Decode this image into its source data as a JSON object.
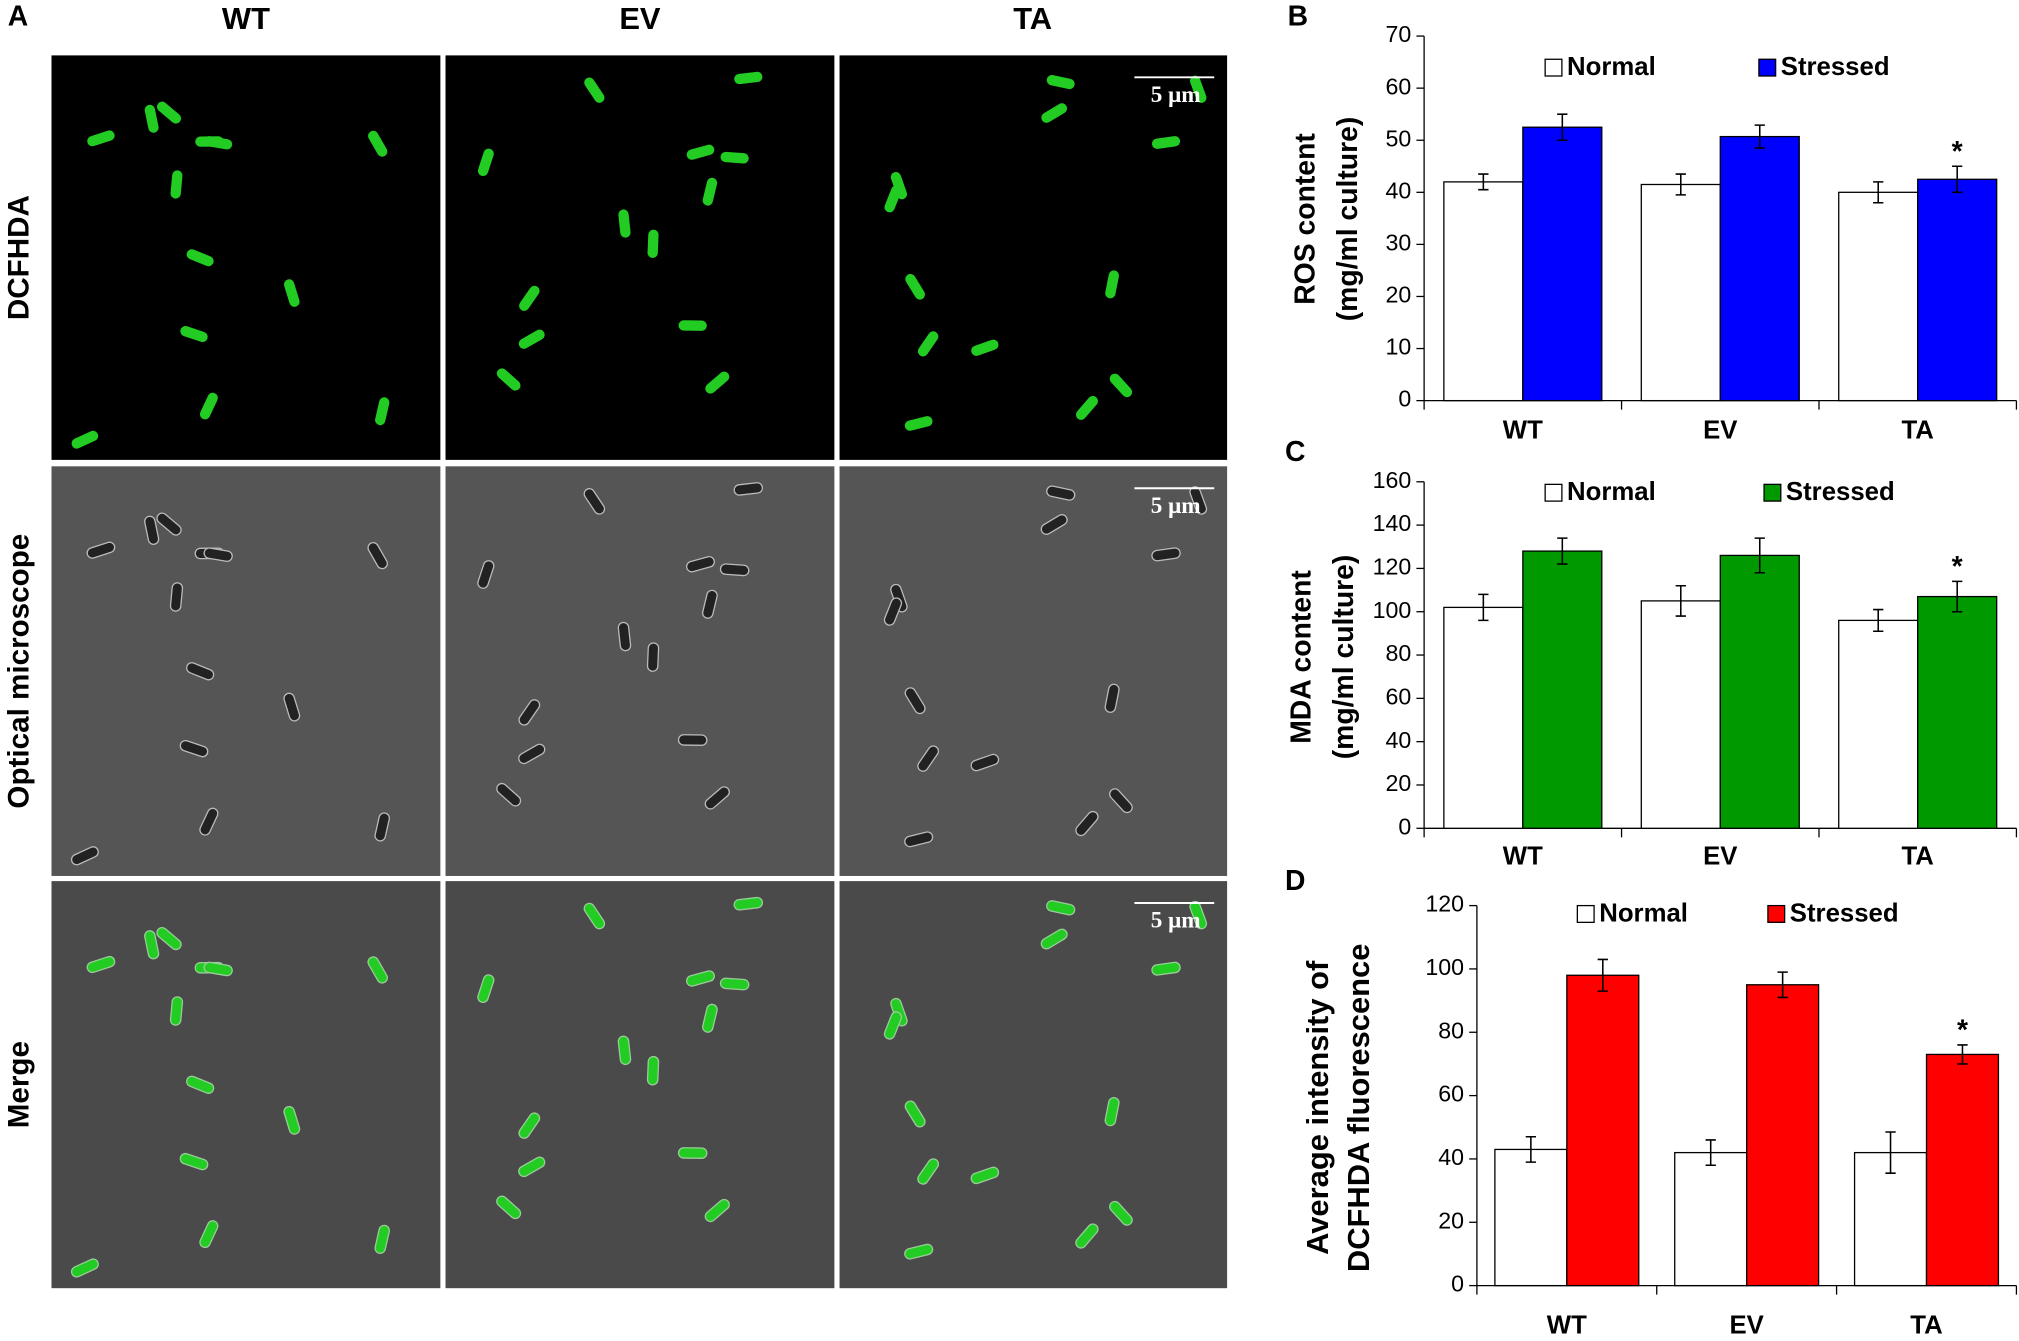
{
  "micrographs": {
    "panel_label": "A",
    "columns": [
      "WT",
      "EV",
      "TA"
    ],
    "rows": [
      "DCFHDA",
      "Optical microscope",
      "Merge"
    ],
    "scale_bar": "5 μm"
  },
  "chart_data": [
    {
      "type": "bar",
      "panel_label": "B",
      "ylabel": [
        "ROS content",
        "(mg/ml culture)"
      ],
      "categories": [
        "WT",
        "EV",
        "TA"
      ],
      "series": [
        {
          "name": "Normal",
          "color": "#ffffff",
          "values": [
            42,
            41.5,
            40
          ],
          "errors": [
            1.5,
            2,
            2
          ],
          "annotations": [
            null,
            null,
            null
          ]
        },
        {
          "name": "Stressed",
          "color": "#0000ff",
          "values": [
            52.5,
            50.7,
            42.5
          ],
          "errors": [
            2.5,
            2.2,
            2.5
          ],
          "annotations": [
            null,
            null,
            "*"
          ]
        }
      ],
      "ylim": [
        0,
        70
      ],
      "yticks": [
        0,
        10,
        20,
        30,
        40,
        50,
        60,
        70
      ],
      "grid": false
    },
    {
      "type": "bar",
      "panel_label": "C",
      "ylabel": [
        "MDA content",
        "(mg/ml culture)"
      ],
      "categories": [
        "WT",
        "EV",
        "TA"
      ],
      "series": [
        {
          "name": "Normal",
          "color": "#ffffff",
          "values": [
            102,
            105,
            96
          ],
          "errors": [
            6,
            7,
            5
          ],
          "annotations": [
            null,
            null,
            null
          ]
        },
        {
          "name": "Stressed",
          "color": "#009900",
          "values": [
            128,
            126,
            107
          ],
          "errors": [
            6,
            8,
            7
          ],
          "annotations": [
            null,
            null,
            "*"
          ]
        }
      ],
      "ylim": [
        0,
        160
      ],
      "yticks": [
        0,
        20,
        40,
        60,
        80,
        100,
        120,
        140,
        160
      ],
      "grid": false
    },
    {
      "type": "bar",
      "panel_label": "D",
      "ylabel": [
        "Average intensity of",
        "DCFHDA fluorescence"
      ],
      "categories": [
        "WT",
        "EV",
        "TA"
      ],
      "series": [
        {
          "name": "Normal",
          "color": "#ffffff",
          "values": [
            43,
            42,
            42
          ],
          "errors": [
            4,
            4,
            6.5
          ],
          "annotations": [
            null,
            null,
            null
          ]
        },
        {
          "name": "Stressed",
          "color": "#ff0000",
          "values": [
            98,
            95,
            73
          ],
          "errors": [
            5,
            4,
            3
          ],
          "annotations": [
            null,
            null,
            "*"
          ]
        }
      ],
      "ylim": [
        0,
        120
      ],
      "yticks": [
        0,
        20,
        40,
        60,
        80,
        100,
        120
      ],
      "grid": false
    }
  ]
}
